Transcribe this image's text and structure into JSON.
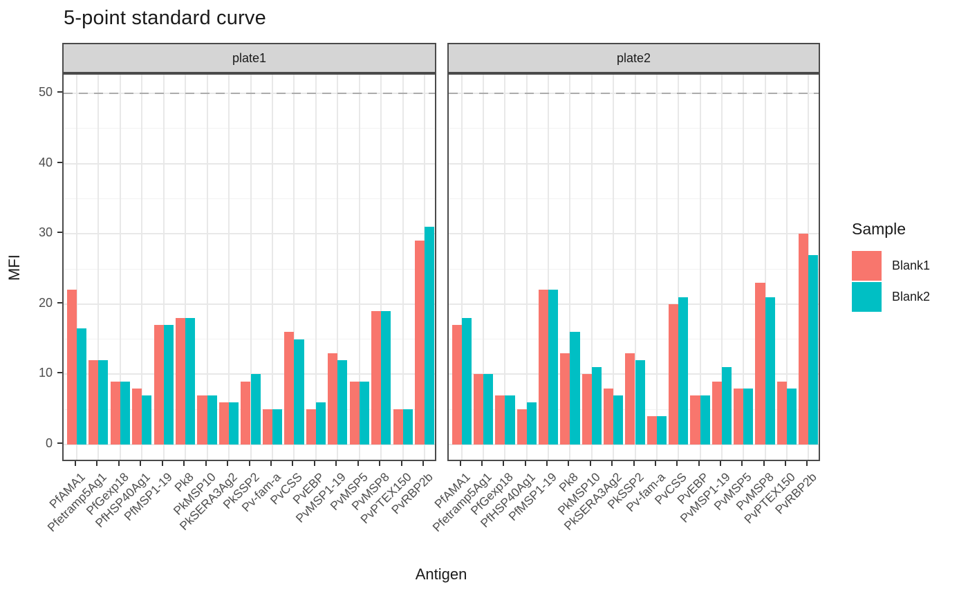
{
  "title": "5-point standard curve",
  "y_axis": {
    "label": "MFI",
    "ticks": [
      0,
      10,
      20,
      30,
      40,
      50
    ],
    "minor_ticks": [
      5,
      15,
      25,
      35,
      45
    ]
  },
  "x_axis": {
    "label": "Antigen"
  },
  "legend": {
    "title": "Sample",
    "entries": [
      {
        "label": "Blank1",
        "color": "#F8766D"
      },
      {
        "label": "Blank2",
        "color": "#00BFC4"
      }
    ]
  },
  "colors": {
    "blank1": "#F8766D",
    "blank2": "#00BFC4",
    "strip_fill": "#d5d5d5",
    "panel_border": "#4a4a4a",
    "dashed_line": "#ababab",
    "axis_text": "#4d4d4d"
  },
  "chart_data": {
    "type": "bar",
    "title": "5-point standard curve",
    "xlabel": "Antigen",
    "ylabel": "MFI",
    "ylim": [
      0,
      50
    ],
    "grid": true,
    "legend_position": "right",
    "hline_dashed_at": 50,
    "categories": [
      "PfAMA1",
      "Pfetramp5Ag1",
      "PfGexp18",
      "PfHSP40Ag1",
      "PfMSP1-19",
      "Pk8",
      "PkMSP10",
      "PkSERA3Ag2",
      "PkSSP2",
      "Pv-fam-a",
      "PvCSS",
      "PvEBP",
      "PvMSP1-19",
      "PvMSP5",
      "PvMSP8",
      "PvPTEX150",
      "PvRBP2b"
    ],
    "facets": [
      {
        "label": "plate1",
        "series": [
          {
            "name": "Blank1",
            "values": [
              22,
              12,
              9,
              8,
              17,
              18,
              7,
              6,
              9,
              5,
              16,
              5,
              13,
              9,
              19,
              5,
              29
            ]
          },
          {
            "name": "Blank2",
            "values": [
              16.5,
              12,
              9,
              7,
              17,
              18,
              7,
              6,
              10,
              5,
              15,
              6,
              12,
              9,
              19,
              5,
              31
            ]
          }
        ]
      },
      {
        "label": "plate2",
        "series": [
          {
            "name": "Blank1",
            "values": [
              17,
              10,
              7,
              5,
              22,
              13,
              10,
              8,
              13,
              4,
              20,
              7,
              9,
              8,
              23,
              9,
              30
            ]
          },
          {
            "name": "Blank2",
            "values": [
              18,
              10,
              7,
              6,
              22,
              16,
              11,
              7,
              12,
              4,
              21,
              7,
              11,
              8,
              21,
              8,
              27
            ]
          }
        ]
      }
    ]
  }
}
